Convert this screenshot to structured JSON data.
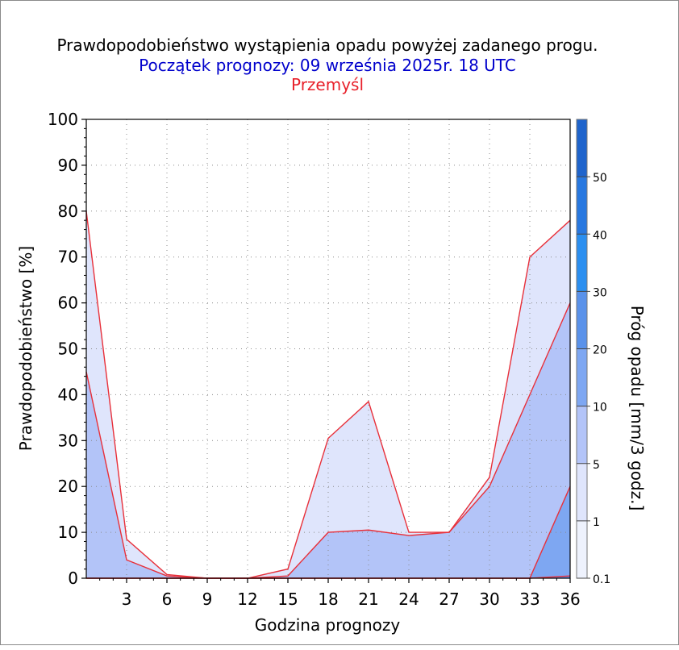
{
  "chart_data": {
    "type": "area",
    "title": "Prawdopodobieństwo wystąpienia opadu powyżej zadanego progu.",
    "subtitle": "Początek prognozy: 09 września 2025r. 18 UTC",
    "location": "Przemyśl",
    "xlabel": "Godzina prognozy",
    "ylabel": "Prawdopodobieństwo [%]",
    "xlim": [
      0,
      36
    ],
    "ylim": [
      0,
      100
    ],
    "xticks": [
      "3",
      "6",
      "9",
      "12",
      "15",
      "18",
      "21",
      "24",
      "27",
      "30",
      "33",
      "36"
    ],
    "yticks": [
      "0",
      "10",
      "20",
      "30",
      "40",
      "50",
      "60",
      "70",
      "80",
      "90",
      "100"
    ],
    "grid": true,
    "x": [
      0,
      3,
      6,
      9,
      12,
      15,
      18,
      21,
      24,
      27,
      30,
      33,
      36
    ],
    "series": [
      {
        "name": "0.1",
        "color": "#dfe5fc",
        "values": [
          80,
          8.5,
          0.8,
          0,
          0,
          2,
          30.5,
          38.5,
          10,
          10,
          22,
          70,
          78
        ]
      },
      {
        "name": "1",
        "color": "#b3c4f8",
        "values": [
          45,
          4,
          0.5,
          0,
          0,
          0.5,
          10,
          10.5,
          9.3,
          10,
          20,
          40,
          60
        ]
      },
      {
        "name": "5",
        "color": "#7ea7f2",
        "values": [
          0,
          0,
          0,
          0,
          0,
          0,
          0,
          0,
          0,
          0,
          0,
          0,
          20
        ]
      },
      {
        "name": "10",
        "color": "#5a92ea",
        "values": [
          0,
          0,
          0,
          0,
          0,
          0,
          0,
          0,
          0,
          0,
          0,
          0,
          0.5
        ]
      }
    ],
    "colorbar": {
      "label": "Próg opadu [mm/3 godz.]",
      "ticks": [
        "0.1",
        "1",
        "5",
        "10",
        "20",
        "30",
        "40",
        "50"
      ],
      "colors": [
        "#eef2fd",
        "#dfe5fc",
        "#b3c4f8",
        "#7ea7f2",
        "#5a92ea",
        "#2b8ff0",
        "#2878e0",
        "#1f64cc",
        "#1a55b8",
        "#1243a0"
      ]
    }
  }
}
